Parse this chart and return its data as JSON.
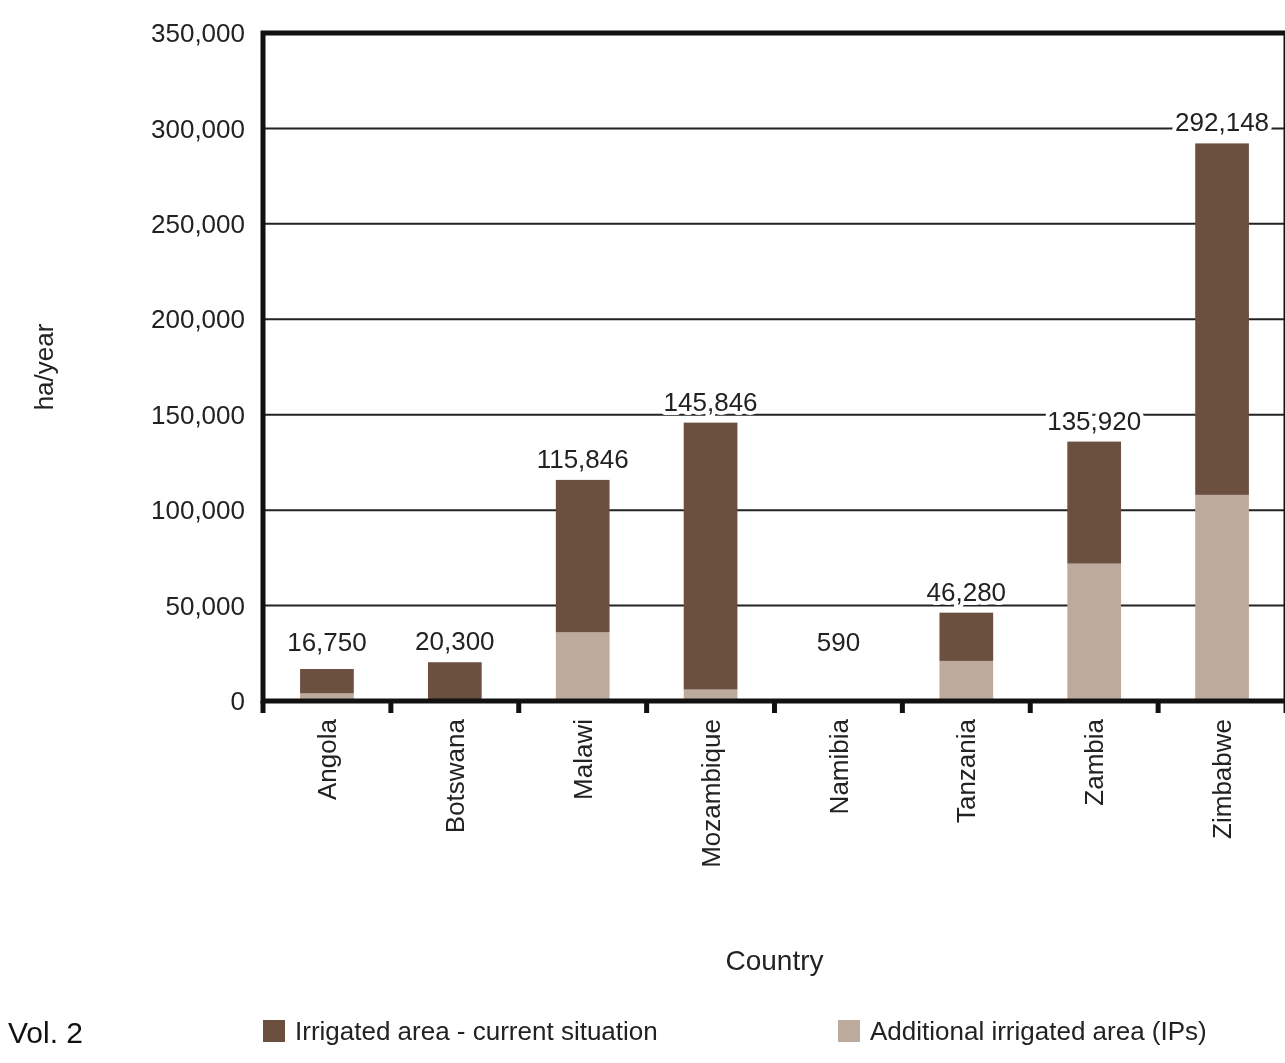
{
  "chart_data": {
    "type": "bar",
    "stacked": true,
    "xlabel": "Country",
    "ylabel": "ha/year",
    "categories": [
      "Angola",
      "Botswana",
      "Malawi",
      "Mozambique",
      "Namibia",
      "Tanzania",
      "Zambia",
      "Zimbabwe"
    ],
    "series": [
      {
        "name": "Additional irrigated area (IPs)",
        "color": "#bcaa9c",
        "values": [
          4000,
          0,
          36000,
          6000,
          0,
          21000,
          72000,
          108000
        ]
      },
      {
        "name": "Irrigated area - current situation",
        "color": "#6b4f3f",
        "values": [
          12750,
          20300,
          79846,
          139846,
          590,
          25280,
          63920,
          184148
        ]
      }
    ],
    "totals": [
      "16,750",
      "20,300",
      "115,846",
      "145,846",
      "590",
      "46,280",
      "135,920",
      "292,148"
    ],
    "ylim": [
      0,
      350000
    ],
    "yticks": [
      {
        "value": 0,
        "label": "0"
      },
      {
        "value": 50000,
        "label": "50,000"
      },
      {
        "value": 100000,
        "label": "100,000"
      },
      {
        "value": 150000,
        "label": "150,000"
      },
      {
        "value": 200000,
        "label": "200,000"
      },
      {
        "value": 250000,
        "label": "250,000"
      },
      {
        "value": 300000,
        "label": "300,000"
      },
      {
        "value": 350000,
        "label": "350,000"
      }
    ],
    "grid": "y",
    "legend": "bottom",
    "annotations": [
      "Vol. 2"
    ]
  }
}
